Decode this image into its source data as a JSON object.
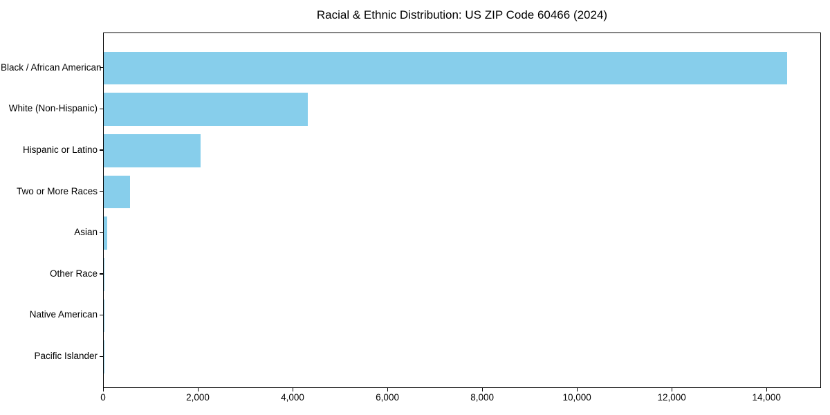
{
  "chart_data": {
    "type": "bar",
    "orientation": "horizontal",
    "title": "Racial & Ethnic Distribution: US ZIP Code 60466 (2024)",
    "categories": [
      "Black / African American",
      "White (Non-Hispanic)",
      "Hispanic or Latino",
      "Two or More Races",
      "Asian",
      "Other Race",
      "Native American",
      "Pacific Islander"
    ],
    "values": [
      14420,
      4300,
      2040,
      560,
      70,
      20,
      10,
      5
    ],
    "xlabel": "",
    "ylabel": "",
    "xlim": [
      0,
      15150
    ],
    "xticks": [
      0,
      2000,
      4000,
      6000,
      8000,
      10000,
      12000,
      14000
    ],
    "xtick_labels": [
      "0",
      "2,000",
      "4,000",
      "6,000",
      "8,000",
      "10,000",
      "12,000",
      "14,000"
    ],
    "bar_color": "#87CEEB",
    "axis_color": "#000000",
    "text_color": "#000000",
    "background_color": "#FFFFFF",
    "grid": false,
    "legend": "none"
  }
}
